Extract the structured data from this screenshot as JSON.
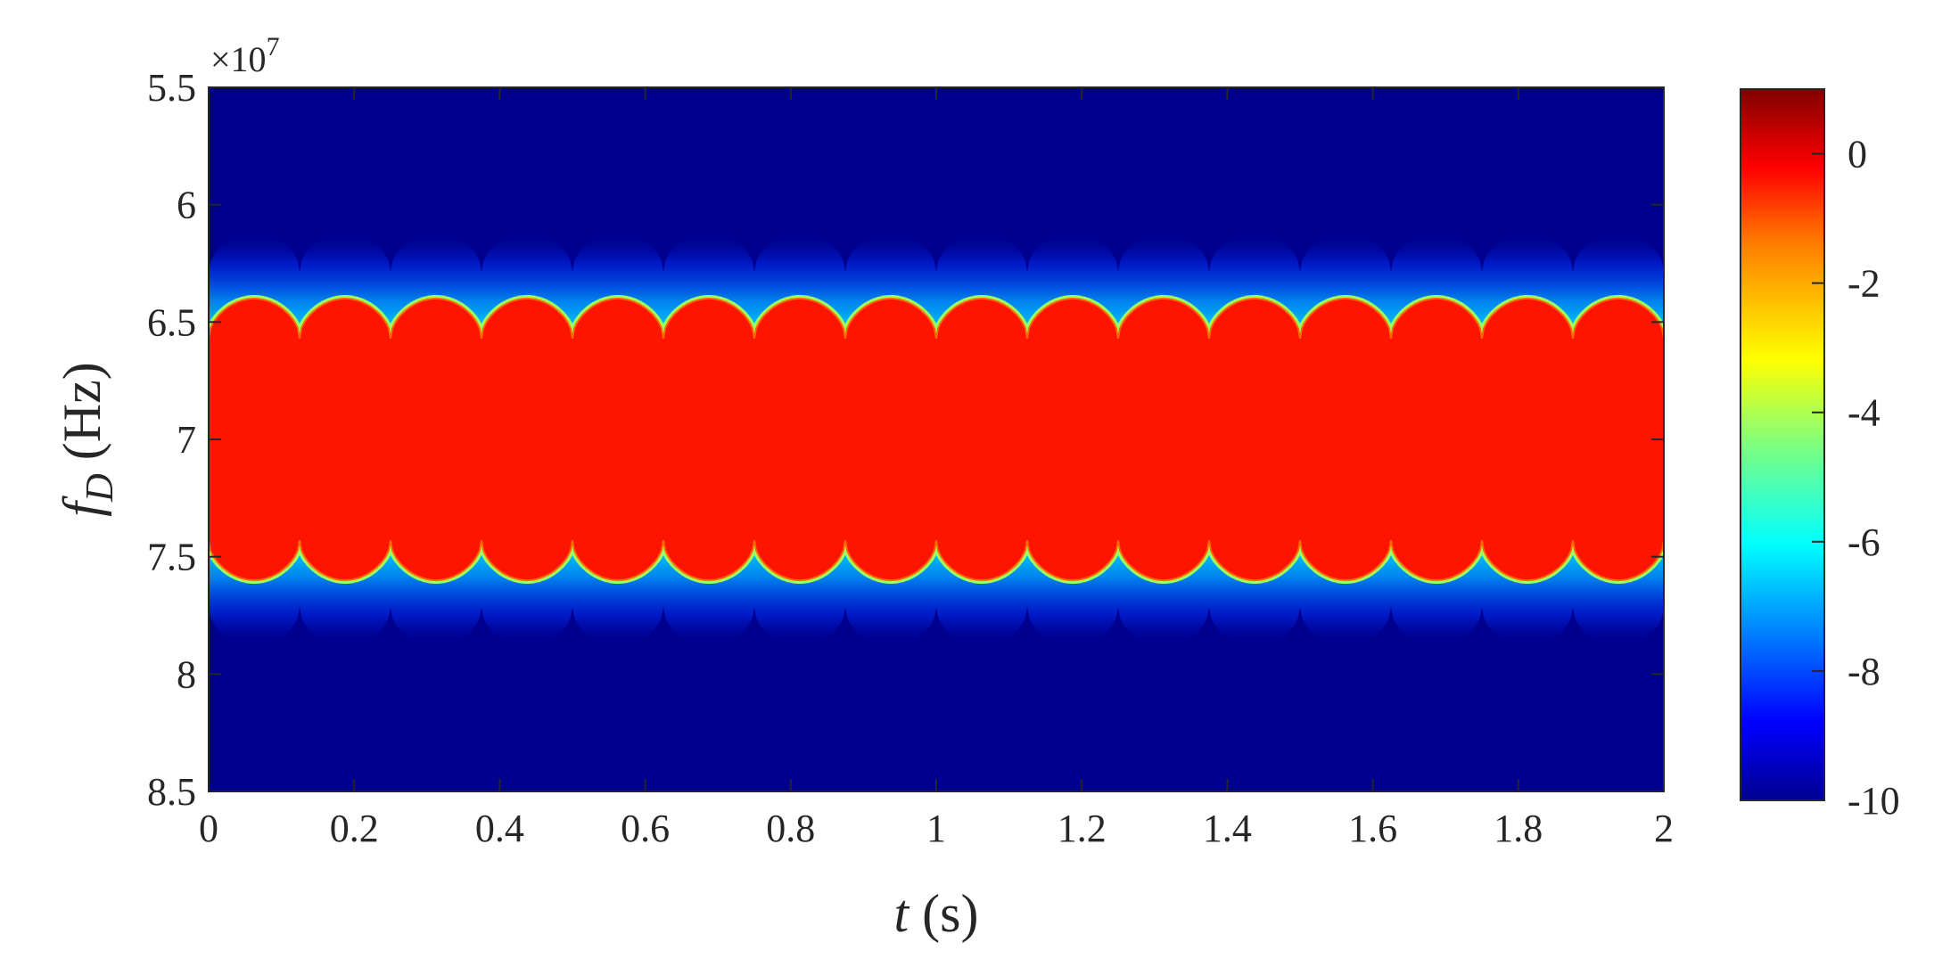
{
  "chart_data": {
    "type": "heatmap",
    "title": "",
    "xlabel": {
      "symbol": "t",
      "unit": "(s)"
    },
    "ylabel": {
      "symbol": "f",
      "subscript": "D",
      "unit": "(Hz)"
    },
    "y_exponent": {
      "prefix": "×10",
      "power": "7"
    },
    "xlim": [
      0,
      2
    ],
    "ylim": [
      5.5,
      8.5
    ],
    "y_reversed": true,
    "x_ticks": [
      "0",
      "0.2",
      "0.4",
      "0.6",
      "0.8",
      "1",
      "1.2",
      "1.4",
      "1.6",
      "1.8",
      "2"
    ],
    "y_ticks": [
      "5.5",
      "6",
      "6.5",
      "7",
      "7.5",
      "8",
      "8.5"
    ],
    "colorbar": {
      "min": -10,
      "max": 1,
      "colormap": "jet",
      "ticks": [
        "0",
        "-2",
        "-4",
        "-6",
        "-8",
        "-10"
      ]
    },
    "signal": {
      "center_y": 7.0,
      "band_inner_edge_y": [
        6.57,
        7.43
      ],
      "band_outer_edge_y": [
        6.4,
        7.6
      ],
      "period_s": 0.125,
      "first_peak_s": 0.0625,
      "peak_level": 0,
      "background_level": -10
    },
    "grid": false,
    "legend": "colorbar-right"
  },
  "colors": {
    "background_low": "#00008f",
    "signal_high": "#ff1400"
  }
}
